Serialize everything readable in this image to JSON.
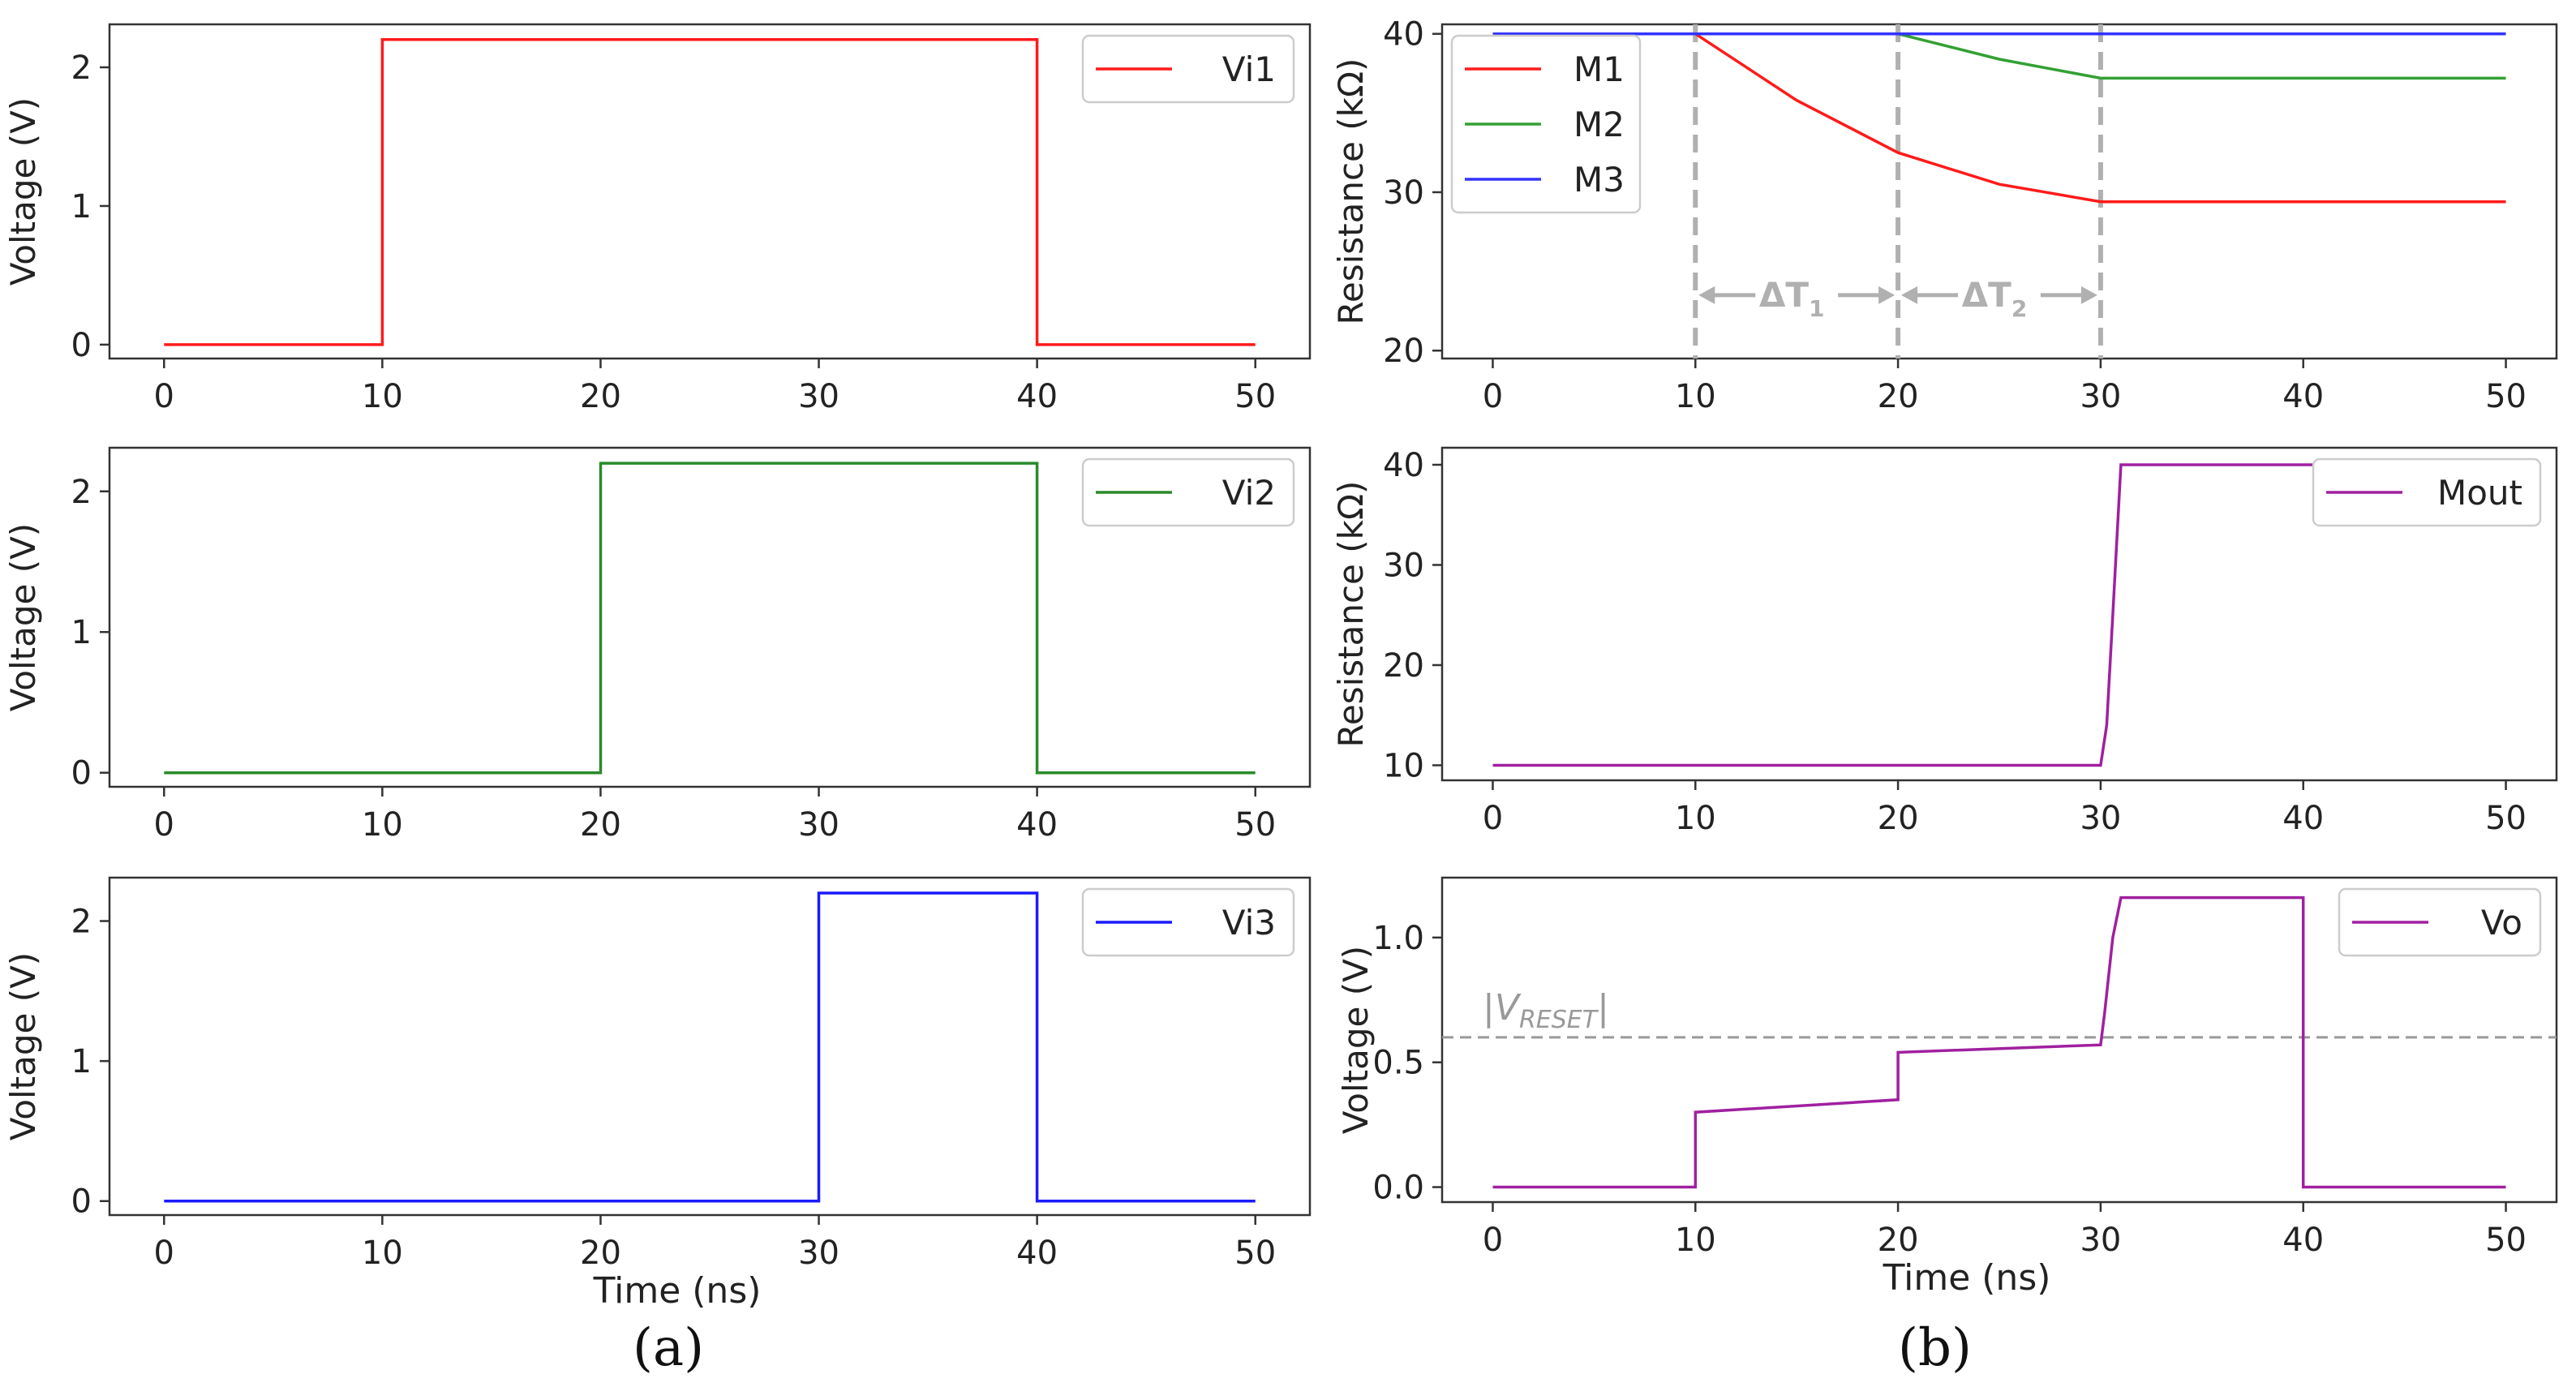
{
  "chart_data": [
    {
      "id": "a1",
      "type": "line",
      "xlabel": "",
      "ylabel": "Voltage (V)",
      "xlim": [
        -2.5,
        52.5
      ],
      "ylim": [
        -0.1,
        2.31
      ],
      "xticks": [
        0,
        10,
        20,
        30,
        40,
        50
      ],
      "yticks": [
        0,
        1,
        2
      ],
      "ytick_labels": [
        "0",
        "1",
        "2"
      ],
      "series": [
        {
          "name": "Vi1",
          "color": "#ff1a1a",
          "x": [
            0,
            10,
            10,
            40,
            40,
            50
          ],
          "y": [
            0,
            0,
            2.2,
            2.2,
            0,
            0
          ]
        }
      ]
    },
    {
      "id": "a2",
      "type": "line",
      "xlabel": "",
      "ylabel": "Voltage (V)",
      "xlim": [
        -2.5,
        52.5
      ],
      "ylim": [
        -0.1,
        2.31
      ],
      "xticks": [
        0,
        10,
        20,
        30,
        40,
        50
      ],
      "yticks": [
        0,
        1,
        2
      ],
      "ytick_labels": [
        "0",
        "1",
        "2"
      ],
      "series": [
        {
          "name": "Vi2",
          "color": "#2a8a2a",
          "x": [
            0,
            20,
            20,
            40,
            40,
            50
          ],
          "y": [
            0,
            0,
            2.2,
            2.2,
            0,
            0
          ]
        }
      ]
    },
    {
      "id": "a3",
      "type": "line",
      "xlabel": "Time (ns)",
      "ylabel": "Voltage (V)",
      "xlim": [
        -2.5,
        52.5
      ],
      "ylim": [
        -0.1,
        2.31
      ],
      "xticks": [
        0,
        10,
        20,
        30,
        40,
        50
      ],
      "yticks": [
        0,
        1,
        2
      ],
      "ytick_labels": [
        "0",
        "1",
        "2"
      ],
      "series": [
        {
          "name": "Vi3",
          "color": "#1a1aff",
          "x": [
            0,
            30,
            30,
            40,
            40,
            50
          ],
          "y": [
            0,
            0,
            2.2,
            2.2,
            0,
            0
          ]
        }
      ]
    },
    {
      "id": "b1",
      "type": "line",
      "xlabel": "",
      "ylabel": "Resistance (kΩ)",
      "xlim": [
        -2.5,
        52.5
      ],
      "ylim": [
        19.5,
        40.6
      ],
      "xticks": [
        0,
        10,
        20,
        30,
        40,
        50
      ],
      "yticks": [
        20,
        30,
        40
      ],
      "ytick_labels": [
        "20",
        "30",
        "40"
      ],
      "series": [
        {
          "name": "M1",
          "color": "#ff1a1a",
          "x": [
            0,
            10,
            15,
            20,
            25,
            30,
            50
          ],
          "y": [
            40,
            40,
            35.8,
            32.5,
            30.5,
            29.4,
            29.4
          ]
        },
        {
          "name": "M2",
          "color": "#33a033",
          "x": [
            0,
            20,
            25,
            30,
            50
          ],
          "y": [
            40,
            40,
            38.4,
            37.2,
            37.2
          ]
        },
        {
          "name": "M3",
          "color": "#3333ff",
          "x": [
            0,
            50
          ],
          "y": [
            40,
            40
          ]
        }
      ],
      "vlines": [
        10,
        20,
        30
      ],
      "intervals": [
        {
          "from": 10,
          "to": 20,
          "y": 23.5,
          "label": "ΔT",
          "subscript": "1"
        },
        {
          "from": 20,
          "to": 30,
          "y": 23.5,
          "label": "ΔT",
          "subscript": "2"
        }
      ]
    },
    {
      "id": "b2",
      "type": "line",
      "xlabel": "",
      "ylabel": "Resistance (kΩ)",
      "xlim": [
        -2.5,
        52.5
      ],
      "ylim": [
        8.5,
        41.7
      ],
      "xticks": [
        0,
        10,
        20,
        30,
        40,
        50
      ],
      "yticks": [
        10,
        20,
        30,
        40
      ],
      "ytick_labels": [
        "10",
        "20",
        "30",
        "40"
      ],
      "series": [
        {
          "name": "Mout",
          "color": "#a020a0",
          "x": [
            0,
            30,
            30.3,
            30.6,
            31,
            50
          ],
          "y": [
            10,
            10,
            14,
            25,
            40,
            40
          ]
        }
      ]
    },
    {
      "id": "b3",
      "type": "line",
      "xlabel": "Time  (ns)",
      "ylabel": "Voltage (V)",
      "xlim": [
        -2.5,
        52.5
      ],
      "ylim": [
        -0.06,
        1.24
      ],
      "xticks": [
        0,
        10,
        20,
        30,
        40,
        50
      ],
      "yticks": [
        0,
        0.5,
        1.0
      ],
      "ytick_labels": [
        "0.0",
        "0.5",
        "1.0"
      ],
      "series": [
        {
          "name": "Vo",
          "color": "#a020a0",
          "x": [
            0,
            10,
            10,
            20,
            20,
            30,
            30.2,
            30.6,
            31,
            40,
            40,
            50
          ],
          "y": [
            0,
            0,
            0.3,
            0.35,
            0.54,
            0.57,
            0.7,
            1.0,
            1.16,
            1.16,
            0,
            0
          ]
        }
      ],
      "hline": {
        "y": 0.6,
        "color": "#999999"
      },
      "annotation": {
        "base": "|V",
        "subscript": "RESET",
        "suffix": "|"
      }
    }
  ],
  "panel_labels": {
    "a": "(a)",
    "b": "(b)"
  }
}
